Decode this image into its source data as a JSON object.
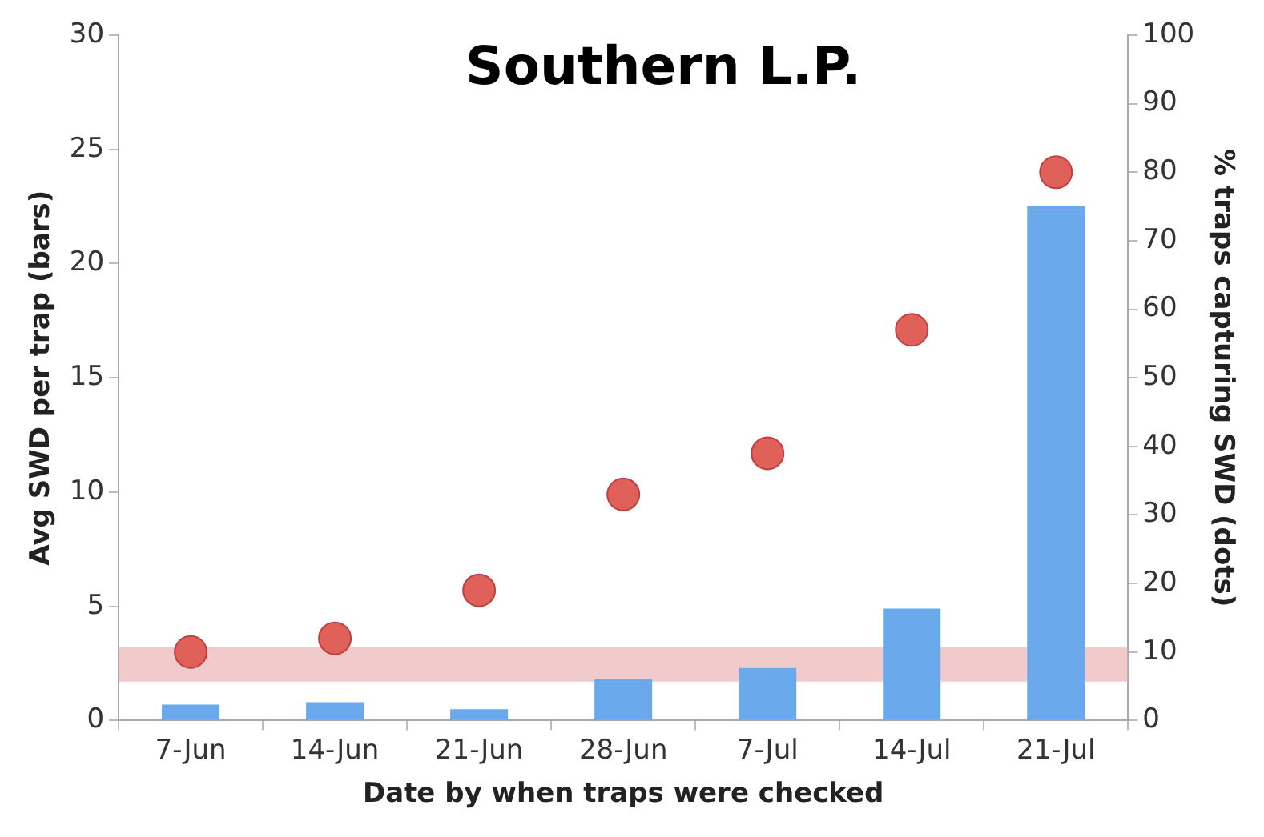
{
  "chart_data": {
    "type": "bar",
    "title": "Southern L.P.",
    "xlabel": "Date by when traps were checked",
    "ylabel": "Avg SWD per trap (bars)",
    "y2label": "% traps capturing SWD (dots)",
    "categories": [
      "7-Jun",
      "14-Jun",
      "21-Jun",
      "28-Jun",
      "7-Jul",
      "14-Jul",
      "21-Jul"
    ],
    "series": [
      {
        "color": "#6aa9ec",
        "values": [
          0.7,
          0.8,
          0.5,
          1.8,
          2.3,
          4.9,
          22.5
        ]
      },
      {
        "type": "scatter",
        "axis": "y2",
        "color": "#e0605a",
        "values": [
          10,
          12,
          19,
          33,
          39,
          57,
          80
        ]
      }
    ],
    "ylim": [
      0,
      30
    ],
    "yticks": [
      0,
      5,
      10,
      15,
      20,
      25,
      30
    ],
    "y2lim": [
      0,
      100
    ],
    "y2ticks": [
      0,
      10,
      20,
      30,
      40,
      50,
      60,
      70,
      80,
      90,
      100
    ],
    "bands": [
      {
        "axis": "y",
        "from": 1.7,
        "to": 3.2,
        "color": "#e8a8a8"
      }
    ],
    "marker": "circle",
    "legend": false
  }
}
